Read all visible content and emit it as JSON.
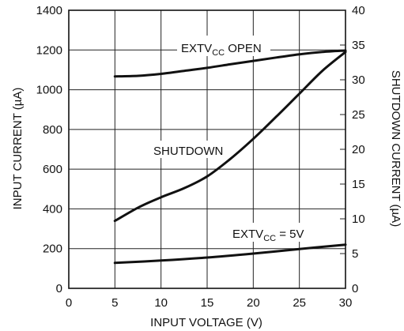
{
  "chart_data": {
    "type": "line",
    "xlabel": "INPUT VOLTAGE (V)",
    "ylabel": "INPUT CURRENT (µA)",
    "y2label": "SHUTDOWN CURRENT (µA)",
    "xlim": [
      0,
      30
    ],
    "ylim": [
      0,
      1400
    ],
    "y2lim": [
      0,
      40
    ],
    "x_ticks": [
      0,
      5,
      10,
      15,
      20,
      25,
      30
    ],
    "y_ticks": [
      0,
      200,
      400,
      600,
      800,
      1000,
      1200,
      1400
    ],
    "y2_ticks": [
      0,
      5,
      10,
      15,
      20,
      25,
      30,
      35,
      40
    ],
    "grid": true,
    "series": [
      {
        "name": "EXTVCC OPEN",
        "axis": "left",
        "label_parts": [
          "EXTV",
          "CC",
          " OPEN"
        ],
        "x": [
          5,
          7.5,
          10,
          12.5,
          15,
          17.5,
          20,
          22.5,
          25,
          27.5,
          30
        ],
        "values": [
          1067,
          1070,
          1080,
          1095,
          1110,
          1128,
          1145,
          1162,
          1178,
          1190,
          1197
        ]
      },
      {
        "name": "SHUTDOWN",
        "axis": "right",
        "label_parts": [
          "SHUTDOWN"
        ],
        "x": [
          5,
          7.5,
          10,
          12.5,
          15,
          17.5,
          20,
          22.5,
          25,
          27.5,
          30
        ],
        "values": [
          9.7,
          11.6,
          13.1,
          14.4,
          16.1,
          18.6,
          21.5,
          24.7,
          28.0,
          31.3,
          34.0
        ]
      },
      {
        "name": "EXTVCC = 5V",
        "axis": "left",
        "label_parts": [
          "EXTV",
          "CC",
          " = 5V"
        ],
        "x": [
          5,
          10,
          15,
          20,
          25,
          30
        ],
        "values": [
          128,
          140,
          155,
          175,
          198,
          220
        ]
      }
    ]
  }
}
